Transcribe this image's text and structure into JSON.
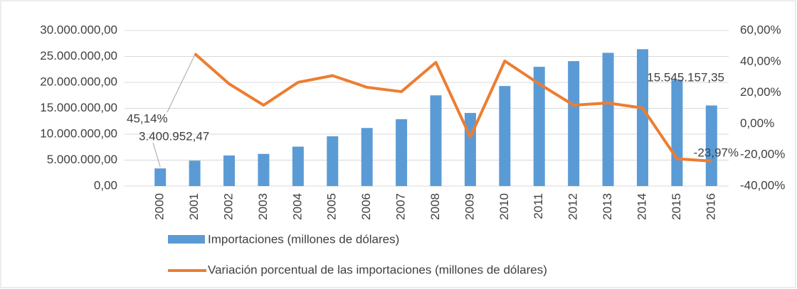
{
  "chart_data": {
    "type": "bar_line",
    "categories": [
      "2000",
      "2001",
      "2002",
      "2003",
      "2004",
      "2005",
      "2006",
      "2007",
      "2008",
      "2009",
      "2010",
      "2011",
      "2012",
      "2013",
      "2014",
      "2015",
      "2016"
    ],
    "series": [
      {
        "name": "Importaciones (millones de dólares)",
        "type": "bar",
        "color": "#5b9bd5",
        "values": [
          3400952.47,
          4900000,
          5900000,
          6200000,
          7600000,
          9600000,
          11200000,
          12900000,
          17500000,
          14100000,
          19300000,
          23000000,
          24100000,
          25700000,
          26400000,
          20500000,
          15545157.35
        ],
        "value_labels": [
          "3.400.952,47",
          null,
          null,
          null,
          null,
          null,
          null,
          null,
          null,
          null,
          null,
          null,
          null,
          null,
          null,
          null,
          "15.545.157,35"
        ]
      },
      {
        "name": "Variación porcentual de las importaciones (millones de dólares)",
        "type": "line",
        "axis": "y2",
        "color": "#ed7d31",
        "values": [
          null,
          45.14,
          25.7,
          12,
          26.7,
          31,
          23.5,
          20.7,
          39.5,
          -8.5,
          40.4,
          25.7,
          12,
          13.4,
          10.2,
          -22.5,
          -23.97
        ],
        "value_labels": [
          null,
          "45,14%",
          null,
          null,
          null,
          null,
          null,
          null,
          null,
          null,
          null,
          null,
          null,
          null,
          null,
          null,
          "-23,97%"
        ]
      }
    ],
    "ylim": [
      0,
      30000000
    ],
    "yticks": [
      {
        "value": 0,
        "label": "0,00"
      },
      {
        "value": 5000000,
        "label": "5.000.000,00"
      },
      {
        "value": 10000000,
        "label": "10.000.000,00"
      },
      {
        "value": 15000000,
        "label": "15.000.000,00"
      },
      {
        "value": 20000000,
        "label": "20.000.000,00"
      },
      {
        "value": 25000000,
        "label": "25.000.000,00"
      },
      {
        "value": 30000000,
        "label": "30.000.000,00"
      }
    ],
    "y2lim": [
      -40,
      60
    ],
    "y2ticks": [
      {
        "value": -40,
        "label": "-40,00%"
      },
      {
        "value": -20,
        "label": "-20,00%"
      },
      {
        "value": 0,
        "label": "0,00%"
      },
      {
        "value": 20,
        "label": "20,00%"
      },
      {
        "value": 40,
        "label": "40,00%"
      },
      {
        "value": 60,
        "label": "60,00%"
      }
    ],
    "grid": true,
    "legend": "bottom"
  }
}
